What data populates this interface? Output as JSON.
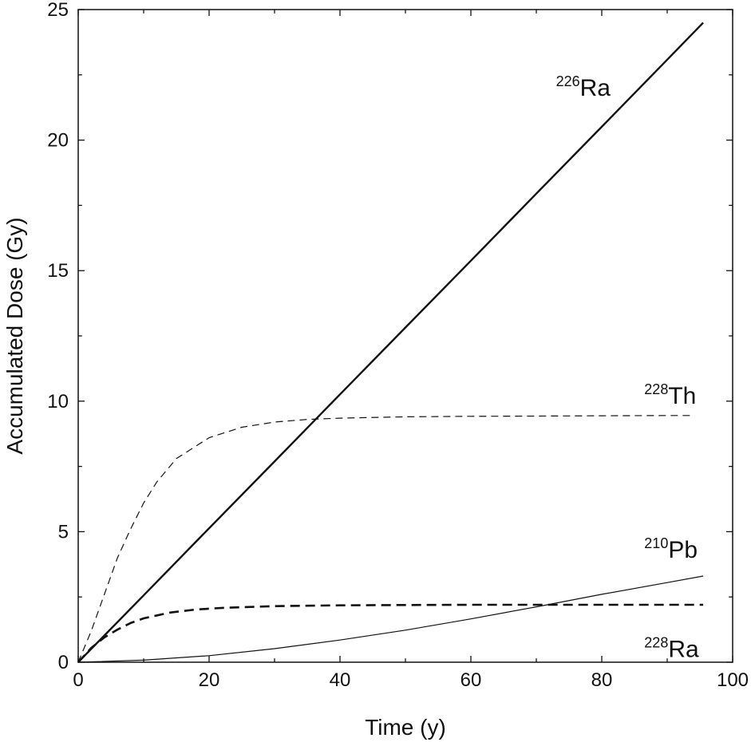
{
  "chart_data": {
    "type": "line",
    "title": "",
    "xlabel": "Time (y)",
    "ylabel": "Accumulated Dose (Gy)",
    "xlim": [
      0,
      100
    ],
    "ylim": [
      0,
      25
    ],
    "x_ticks": [
      0,
      20,
      40,
      60,
      80,
      100
    ],
    "y_ticks": [
      0,
      5,
      10,
      15,
      20,
      25
    ],
    "grid": false,
    "legend": "none (series labelled directly on curves)",
    "series": [
      {
        "name": "226Ra",
        "label_mass": "226",
        "label_element": "Ra",
        "style": "solid-thick",
        "x": [
          0,
          10,
          20,
          30,
          40,
          50,
          60,
          70,
          80,
          90,
          95.5
        ],
        "y": [
          0,
          2.56,
          5.13,
          7.69,
          10.26,
          12.82,
          15.38,
          17.95,
          20.51,
          23.08,
          24.5
        ]
      },
      {
        "name": "228Th",
        "label_mass": "228",
        "label_element": "Th",
        "style": "dashed-thin",
        "x": [
          0,
          2,
          4,
          6,
          8,
          10,
          12,
          15,
          20,
          25,
          30,
          35,
          40,
          50,
          60,
          70,
          80,
          90,
          94
        ],
        "y": [
          0,
          1.2,
          2.6,
          4.0,
          5.1,
          6.1,
          6.9,
          7.8,
          8.6,
          9.0,
          9.2,
          9.3,
          9.35,
          9.4,
          9.42,
          9.43,
          9.44,
          9.45,
          9.45
        ]
      },
      {
        "name": "210Pb",
        "label_mass": "210",
        "label_element": "Pb",
        "style": "solid-thin",
        "x": [
          0,
          10,
          20,
          30,
          40,
          50,
          60,
          70,
          80,
          90,
          95.5
        ],
        "y": [
          0,
          0.08,
          0.25,
          0.52,
          0.85,
          1.23,
          1.66,
          2.12,
          2.6,
          3.05,
          3.3
        ]
      },
      {
        "name": "228Ra",
        "label_mass": "228",
        "label_element": "Ra",
        "style": "dashed-thick",
        "x": [
          0,
          2,
          4,
          6,
          8,
          10,
          14,
          18,
          22,
          30,
          40,
          50,
          60,
          70,
          80,
          90,
          95.5
        ],
        "y": [
          0,
          0.55,
          0.95,
          1.25,
          1.5,
          1.68,
          1.9,
          2.02,
          2.08,
          2.15,
          2.18,
          2.19,
          2.2,
          2.2,
          2.2,
          2.2,
          2.2
        ]
      }
    ],
    "annotations": [
      {
        "series": "226Ra",
        "x": 73,
        "y": 21.7
      },
      {
        "series": "228Th",
        "x": 86.5,
        "y": 9.9
      },
      {
        "series": "210Pb",
        "x": 86.5,
        "y": 4.0
      },
      {
        "series": "228Ra",
        "x": 86.5,
        "y": 0.2
      }
    ]
  }
}
